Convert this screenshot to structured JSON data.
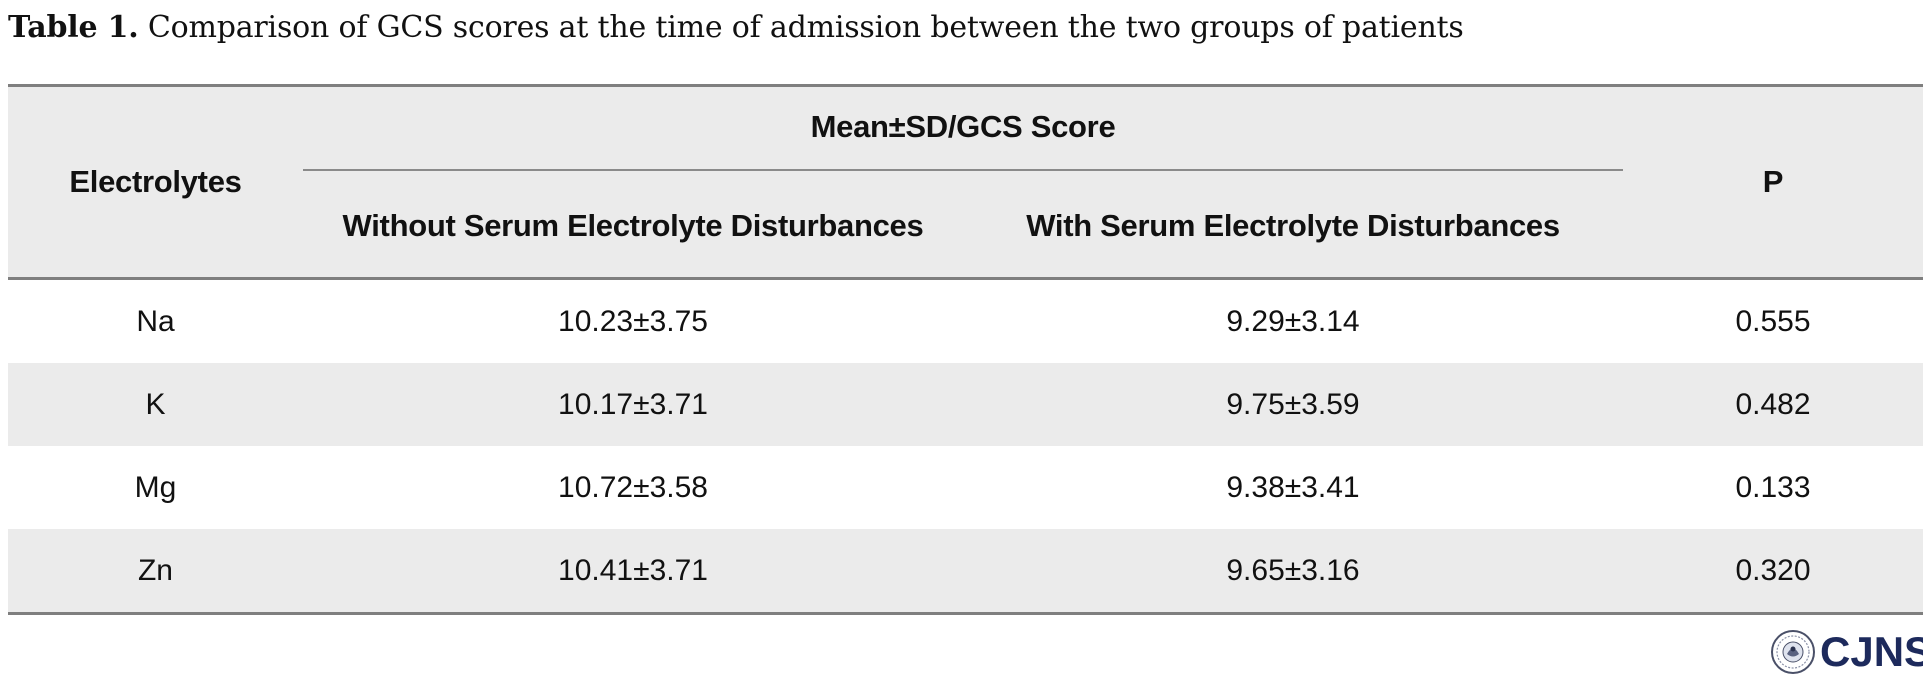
{
  "caption": {
    "label": "Table 1.",
    "text": "Comparison of GCS scores at the time of admission between the two groups of patients"
  },
  "table": {
    "headers": {
      "electrolytes": "Electrolytes",
      "group": "Mean±SD/GCS Score",
      "without": "Without Serum Electrolyte Disturbances",
      "with": "With Serum Electrolyte Disturbances",
      "p": "P"
    },
    "rows": [
      [
        "Na",
        "10.23±3.75",
        "9.29±3.14",
        "0.555"
      ],
      [
        "K",
        "10.17±3.71",
        "9.75±3.59",
        "0.482"
      ],
      [
        "Mg",
        "10.72±3.58",
        "9.38±3.41",
        "0.133"
      ],
      [
        "Zn",
        "10.41±3.71",
        "9.65±3.16",
        "0.320"
      ]
    ]
  },
  "logo": {
    "brand": "CJNS",
    "icon": "journal-seal-icon",
    "color": "#1d2a5c"
  }
}
